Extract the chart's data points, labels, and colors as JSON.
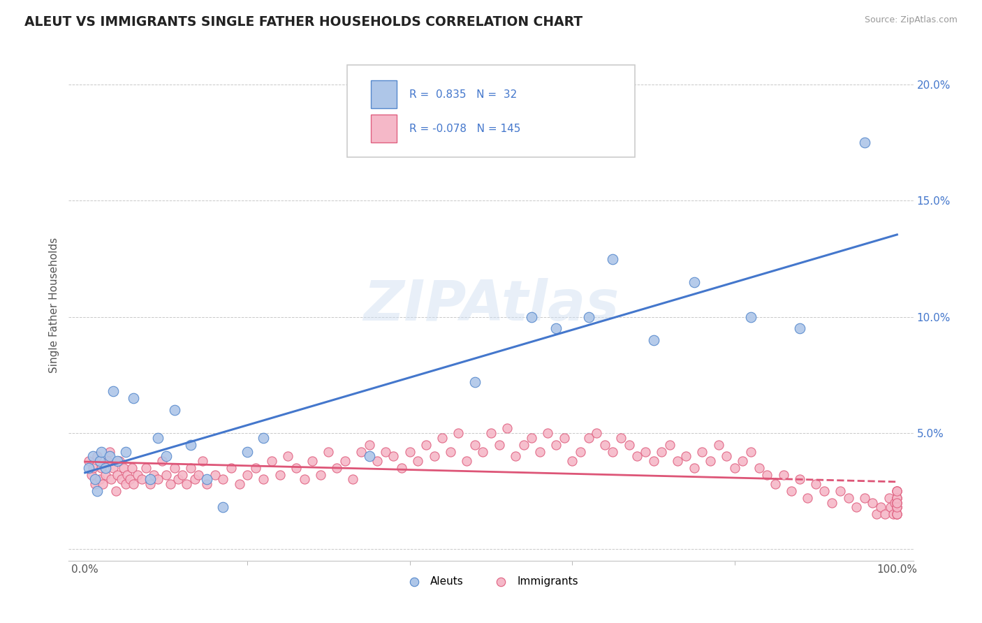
{
  "title": "ALEUT VS IMMIGRANTS SINGLE FATHER HOUSEHOLDS CORRELATION CHART",
  "source_text": "Source: ZipAtlas.com",
  "ylabel": "Single Father Households",
  "xlim": [
    -0.02,
    1.02
  ],
  "ylim": [
    -0.005,
    0.215
  ],
  "xticks_major": [
    0.0,
    1.0
  ],
  "xticks_minor": [
    0.2,
    0.4,
    0.6,
    0.8
  ],
  "yticks": [
    0.0,
    0.05,
    0.1,
    0.15,
    0.2
  ],
  "xticklabels_major": [
    "0.0%",
    "100.0%"
  ],
  "yticklabels": [
    "",
    "5.0%",
    "10.0%",
    "15.0%",
    "20.0%"
  ],
  "legend_r1_val": "0.835",
  "legend_r1_n": "32",
  "legend_r2_val": "-0.078",
  "legend_r2_n": "145",
  "aleut_fill_color": "#aec6e8",
  "aleut_edge_color": "#5588cc",
  "immigrant_fill_color": "#f5b8c8",
  "immigrant_edge_color": "#e06080",
  "aleut_line_color": "#4477cc",
  "immigrant_line_color": "#dd5577",
  "background_color": "#ffffff",
  "grid_color": "#bbbbbb",
  "title_color": "#222222",
  "tick_color": "#4477cc",
  "watermark": "ZIPAtlas",
  "aleuts_x": [
    0.005,
    0.01,
    0.012,
    0.015,
    0.018,
    0.02,
    0.025,
    0.03,
    0.035,
    0.04,
    0.05,
    0.06,
    0.08,
    0.09,
    0.1,
    0.11,
    0.13,
    0.15,
    0.17,
    0.2,
    0.22,
    0.35,
    0.48,
    0.55,
    0.58,
    0.62,
    0.65,
    0.7,
    0.75,
    0.82,
    0.88,
    0.96
  ],
  "aleuts_y": [
    0.035,
    0.04,
    0.03,
    0.025,
    0.038,
    0.042,
    0.035,
    0.04,
    0.068,
    0.038,
    0.042,
    0.065,
    0.03,
    0.048,
    0.04,
    0.06,
    0.045,
    0.03,
    0.018,
    0.042,
    0.048,
    0.04,
    0.072,
    0.1,
    0.095,
    0.1,
    0.125,
    0.09,
    0.115,
    0.1,
    0.095,
    0.175
  ],
  "immigrants_x": [
    0.005,
    0.008,
    0.01,
    0.012,
    0.015,
    0.018,
    0.02,
    0.022,
    0.025,
    0.028,
    0.03,
    0.032,
    0.035,
    0.038,
    0.04,
    0.042,
    0.045,
    0.048,
    0.05,
    0.052,
    0.055,
    0.058,
    0.06,
    0.065,
    0.07,
    0.075,
    0.08,
    0.085,
    0.09,
    0.095,
    0.1,
    0.105,
    0.11,
    0.115,
    0.12,
    0.125,
    0.13,
    0.135,
    0.14,
    0.145,
    0.15,
    0.16,
    0.17,
    0.18,
    0.19,
    0.2,
    0.21,
    0.22,
    0.23,
    0.24,
    0.25,
    0.26,
    0.27,
    0.28,
    0.29,
    0.3,
    0.31,
    0.32,
    0.33,
    0.34,
    0.35,
    0.36,
    0.37,
    0.38,
    0.39,
    0.4,
    0.41,
    0.42,
    0.43,
    0.44,
    0.45,
    0.46,
    0.47,
    0.48,
    0.49,
    0.5,
    0.51,
    0.52,
    0.53,
    0.54,
    0.55,
    0.56,
    0.57,
    0.58,
    0.59,
    0.6,
    0.61,
    0.62,
    0.63,
    0.64,
    0.65,
    0.66,
    0.67,
    0.68,
    0.69,
    0.7,
    0.71,
    0.72,
    0.73,
    0.74,
    0.75,
    0.76,
    0.77,
    0.78,
    0.79,
    0.8,
    0.81,
    0.82,
    0.83,
    0.84,
    0.85,
    0.86,
    0.87,
    0.88,
    0.89,
    0.9,
    0.91,
    0.92,
    0.93,
    0.94,
    0.95,
    0.96,
    0.97,
    0.975,
    0.98,
    0.985,
    0.99,
    0.992,
    0.995,
    0.997,
    1.0,
    1.0,
    1.0,
    1.0,
    1.0,
    1.0,
    1.0,
    1.0,
    1.0,
    1.0,
    1.0,
    1.0,
    1.0,
    1.0,
    1.0
  ],
  "immigrants_y": [
    0.038,
    0.032,
    0.035,
    0.028,
    0.04,
    0.03,
    0.035,
    0.028,
    0.032,
    0.038,
    0.042,
    0.03,
    0.035,
    0.025,
    0.032,
    0.038,
    0.03,
    0.035,
    0.028,
    0.032,
    0.03,
    0.035,
    0.028,
    0.032,
    0.03,
    0.035,
    0.028,
    0.032,
    0.03,
    0.038,
    0.032,
    0.028,
    0.035,
    0.03,
    0.032,
    0.028,
    0.035,
    0.03,
    0.032,
    0.038,
    0.028,
    0.032,
    0.03,
    0.035,
    0.028,
    0.032,
    0.035,
    0.03,
    0.038,
    0.032,
    0.04,
    0.035,
    0.03,
    0.038,
    0.032,
    0.042,
    0.035,
    0.038,
    0.03,
    0.042,
    0.045,
    0.038,
    0.042,
    0.04,
    0.035,
    0.042,
    0.038,
    0.045,
    0.04,
    0.048,
    0.042,
    0.05,
    0.038,
    0.045,
    0.042,
    0.05,
    0.045,
    0.052,
    0.04,
    0.045,
    0.048,
    0.042,
    0.05,
    0.045,
    0.048,
    0.038,
    0.042,
    0.048,
    0.05,
    0.045,
    0.042,
    0.048,
    0.045,
    0.04,
    0.042,
    0.038,
    0.042,
    0.045,
    0.038,
    0.04,
    0.035,
    0.042,
    0.038,
    0.045,
    0.04,
    0.035,
    0.038,
    0.042,
    0.035,
    0.032,
    0.028,
    0.032,
    0.025,
    0.03,
    0.022,
    0.028,
    0.025,
    0.02,
    0.025,
    0.022,
    0.018,
    0.022,
    0.02,
    0.015,
    0.018,
    0.015,
    0.022,
    0.018,
    0.015,
    0.02,
    0.025,
    0.018,
    0.022,
    0.015,
    0.02,
    0.025,
    0.018,
    0.015,
    0.022,
    0.02,
    0.015,
    0.018,
    0.022,
    0.025,
    0.02
  ]
}
